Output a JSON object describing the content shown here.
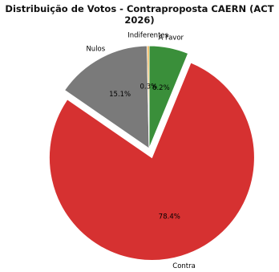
{
  "chart_data": {
    "type": "pie",
    "title": "Distribuição de Votos - Contraproposta CAERN (ACT 2026)",
    "slices": [
      {
        "label": "A Favor",
        "value": 6.2,
        "pct_label": "6.2%",
        "color": "#3a8f3a",
        "explode": false
      },
      {
        "label": "Contra",
        "value": 78.4,
        "pct_label": "78.4%",
        "color": "#d63131",
        "explode": true
      },
      {
        "label": "Nulos",
        "value": 15.1,
        "pct_label": "15.1%",
        "color": "#7a7a7a",
        "explode": false
      },
      {
        "label": "Indiferentes",
        "value": 0.3,
        "pct_label": "0.3%",
        "color": "#f0a020",
        "explode": false
      }
    ],
    "start_angle_deg": 90,
    "direction": "clockwise",
    "legend": "none"
  }
}
